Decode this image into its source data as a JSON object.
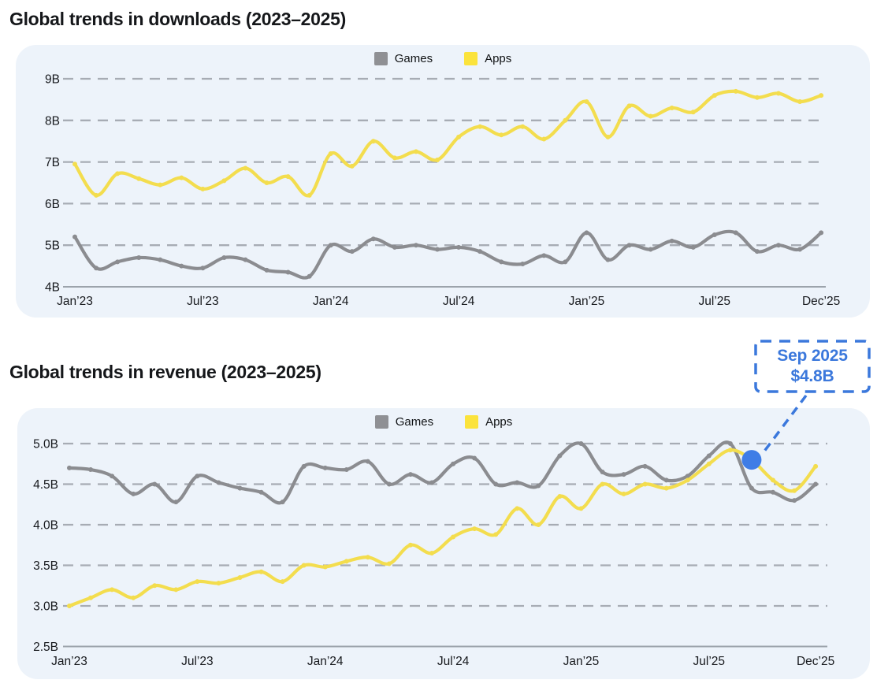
{
  "colors": {
    "page_bg": "#ffffff",
    "panel_bg": "#edf3fa",
    "games": "#8b8c90",
    "games_swatch": "#8f9094",
    "apps": "#f3dd4e",
    "apps_swatch": "#fbe33c",
    "grid": "#a7acb4",
    "baseline": "#9ca3ab",
    "axis_text": "#17191d",
    "annotation_blue": "#3b78dc",
    "dot_blue": "#3f7de6"
  },
  "annotation": {
    "line1": "Sep 2025",
    "line2": "$4.8B"
  },
  "chart_data": [
    {
      "type": "line",
      "title": "Global trends in downloads (2023–2025)",
      "unit": "billions of downloads",
      "legend": [
        {
          "label": "Games",
          "color": "#8f9094"
        },
        {
          "label": "Apps",
          "color": "#fbe33c"
        }
      ],
      "ylim": [
        4,
        9
      ],
      "y_ticks": [
        {
          "label": "9B",
          "value": 9
        },
        {
          "label": "8B",
          "value": 8
        },
        {
          "label": "7B",
          "value": 7
        },
        {
          "label": "6B",
          "value": 6
        },
        {
          "label": "5B",
          "value": 5
        },
        {
          "label": "4B",
          "value": 4
        }
      ],
      "x_tick_labels": [
        "Jan’23",
        "Jul’23",
        "Jan’24",
        "Jul’24",
        "Jan’25",
        "Jul’25",
        "Dec’25"
      ],
      "x_tick_indices": [
        0,
        6,
        12,
        18,
        24,
        30,
        35
      ],
      "grid": true,
      "legend_position": "top-center",
      "categories": [
        "Jan’23",
        "Feb’23",
        "Mar’23",
        "Apr’23",
        "May’23",
        "Jun’23",
        "Jul’23",
        "Aug’23",
        "Sep’23",
        "Oct’23",
        "Nov’23",
        "Dec’23",
        "Jan’24",
        "Feb’24",
        "Mar’24",
        "Apr’24",
        "May’24",
        "Jun’24",
        "Jul’24",
        "Aug’24",
        "Sep’24",
        "Oct’24",
        "Nov’24",
        "Dec’24",
        "Jan’25",
        "Feb’25",
        "Mar’25",
        "Apr’25",
        "May’25",
        "Jun’25",
        "Jul’25",
        "Aug’25",
        "Sep’25",
        "Oct’25",
        "Nov’25",
        "Dec’25"
      ],
      "series": [
        {
          "name": "Games",
          "color": "#8b8c90",
          "values": [
            5.2,
            4.45,
            4.6,
            4.7,
            4.65,
            4.5,
            4.45,
            4.7,
            4.65,
            4.4,
            4.35,
            4.25,
            5.0,
            4.85,
            5.15,
            4.95,
            5.0,
            4.9,
            4.95,
            4.85,
            4.6,
            4.55,
            4.75,
            4.6,
            5.3,
            4.65,
            5.0,
            4.9,
            5.1,
            4.95,
            5.25,
            5.3,
            4.85,
            5.0,
            4.9,
            5.3
          ]
        },
        {
          "name": "Apps",
          "color": "#f3dd4e",
          "values": [
            6.95,
            6.2,
            6.72,
            6.6,
            6.45,
            6.62,
            6.35,
            6.55,
            6.85,
            6.5,
            6.65,
            6.2,
            7.2,
            6.9,
            7.5,
            7.1,
            7.25,
            7.05,
            7.6,
            7.85,
            7.65,
            7.85,
            7.55,
            8.0,
            8.45,
            7.6,
            8.35,
            8.1,
            8.3,
            8.2,
            8.6,
            8.7,
            8.55,
            8.65,
            8.45,
            8.6
          ]
        }
      ]
    },
    {
      "type": "line",
      "title": "Global trends in revenue (2023–2025)",
      "unit": "billions of dollars",
      "legend": [
        {
          "label": "Games",
          "color": "#8f9094"
        },
        {
          "label": "Apps",
          "color": "#fbe33c"
        }
      ],
      "ylim": [
        2.5,
        5.0
      ],
      "y_ticks": [
        {
          "label": "5.0B",
          "value": 5.0
        },
        {
          "label": "4.5B",
          "value": 4.5
        },
        {
          "label": "4.0B",
          "value": 4.0
        },
        {
          "label": "3.5B",
          "value": 3.5
        },
        {
          "label": "3.0B",
          "value": 3.0
        },
        {
          "label": "2.5B",
          "value": 2.5
        }
      ],
      "x_tick_labels": [
        "Jan’23",
        "Jul’23",
        "Jan’24",
        "Jul’24",
        "Jan’25",
        "Jul’25",
        "Dec’25"
      ],
      "x_tick_indices": [
        0,
        6,
        12,
        18,
        24,
        30,
        35
      ],
      "grid": true,
      "legend_position": "top-center",
      "categories": [
        "Jan’23",
        "Feb’23",
        "Mar’23",
        "Apr’23",
        "May’23",
        "Jun’23",
        "Jul’23",
        "Aug’23",
        "Sep’23",
        "Oct’23",
        "Nov’23",
        "Dec’23",
        "Jan’24",
        "Feb’24",
        "Mar’24",
        "Apr’24",
        "May’24",
        "Jun’24",
        "Jul’24",
        "Aug’24",
        "Sep’24",
        "Oct’24",
        "Nov’24",
        "Dec’24",
        "Jan’25",
        "Feb’25",
        "Mar’25",
        "Apr’25",
        "May’25",
        "Jun’25",
        "Jul’25",
        "Aug’25",
        "Sep’25",
        "Oct’25",
        "Nov’25",
        "Dec’25"
      ],
      "series": [
        {
          "name": "Games",
          "color": "#8b8c90",
          "values": [
            4.7,
            4.68,
            4.6,
            4.38,
            4.5,
            4.28,
            4.6,
            4.52,
            4.45,
            4.4,
            4.28,
            4.72,
            4.7,
            4.68,
            4.78,
            4.5,
            4.62,
            4.52,
            4.75,
            4.82,
            4.5,
            4.52,
            4.48,
            4.85,
            5.0,
            4.65,
            4.62,
            4.72,
            4.55,
            4.6,
            4.85,
            5.0,
            4.45,
            4.4,
            4.3,
            4.5
          ]
        },
        {
          "name": "Apps",
          "color": "#f3dd4e",
          "values": [
            3.0,
            3.1,
            3.2,
            3.1,
            3.25,
            3.2,
            3.3,
            3.28,
            3.35,
            3.42,
            3.3,
            3.5,
            3.48,
            3.55,
            3.6,
            3.52,
            3.75,
            3.65,
            3.85,
            3.95,
            3.88,
            4.2,
            4.0,
            4.35,
            4.2,
            4.5,
            4.38,
            4.5,
            4.45,
            4.55,
            4.75,
            4.92,
            4.8,
            4.55,
            4.42,
            4.72
          ]
        }
      ],
      "annotation": {
        "label_line1": "Sep 2025",
        "label_line2": "$4.8B",
        "month": "Sep’25",
        "month_index": 32,
        "value": 4.8,
        "dot_color": "#3f7de6",
        "callout_color": "#3b78dc"
      }
    }
  ]
}
